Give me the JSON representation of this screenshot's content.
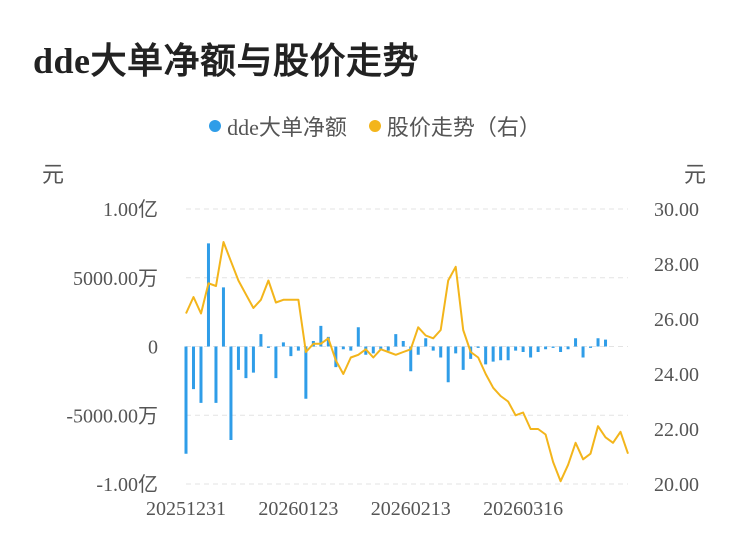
{
  "page": {
    "title": "dde大单净额与股价走势"
  },
  "legend": {
    "series1": {
      "label": "dde大单净额",
      "color": "#2f9de8"
    },
    "series2": {
      "label": "股价走势（右）",
      "color": "#f3b51b"
    }
  },
  "units": {
    "left": "元",
    "right": "元"
  },
  "chart_data": {
    "type": "bar+line",
    "title": "dde大单净额与股价走势",
    "x_tick_labels": [
      "20251231",
      "20260123",
      "20260213",
      "20260316"
    ],
    "x_tick_indices": [
      0,
      15,
      30,
      45
    ],
    "left_axis": {
      "ylim": [
        -10000,
        10000
      ],
      "unit": "万",
      "ticks": [
        "1.00亿",
        "5000.00万",
        "0",
        "-5000.00万",
        "-1.00亿"
      ],
      "tick_values": [
        10000,
        5000,
        0,
        -5000,
        -10000
      ]
    },
    "right_axis": {
      "ylim": [
        20,
        30
      ],
      "ticks": [
        "30.00",
        "28.00",
        "26.00",
        "24.00",
        "22.00",
        "20.00"
      ],
      "tick_values": [
        30,
        28,
        26,
        24,
        22,
        20
      ]
    },
    "grid": true,
    "legend_position": "top-center",
    "series": [
      {
        "name": "dde大单净额",
        "kind": "bar",
        "axis": "left",
        "color": "#2f9de8",
        "values": [
          -7800,
          -3100,
          -4100,
          7500,
          -4100,
          4300,
          -6800,
          -1700,
          -2300,
          -1900,
          900,
          -100,
          -2300,
          300,
          -700,
          -300,
          -3800,
          400,
          1500,
          700,
          -1500,
          -200,
          -300,
          1400,
          -600,
          -500,
          -200,
          -300,
          900,
          400,
          -1800,
          -600,
          600,
          -300,
          -800,
          -2600,
          -500,
          -1700,
          -900,
          -100,
          -1300,
          -1100,
          -1000,
          -1000,
          -300,
          -400,
          -800,
          -400,
          -200,
          -100,
          -400,
          -200,
          600,
          -800,
          -100,
          600,
          500
        ]
      },
      {
        "name": "股价走势（右）",
        "kind": "line",
        "axis": "right",
        "color": "#f3b51b",
        "values": [
          26.2,
          26.8,
          26.2,
          27.3,
          27.2,
          28.8,
          28.1,
          27.4,
          26.9,
          26.4,
          26.7,
          27.4,
          26.6,
          26.7,
          26.7,
          26.7,
          24.8,
          25.1,
          25.1,
          25.3,
          24.5,
          24.0,
          24.6,
          24.7,
          24.9,
          24.6,
          24.9,
          24.8,
          24.7,
          24.8,
          24.9,
          25.7,
          25.4,
          25.3,
          25.6,
          27.4,
          27.9,
          25.6,
          24.8,
          24.6,
          24.0,
          23.5,
          23.2,
          23.0,
          22.5,
          22.6,
          22.0,
          22.0,
          21.8,
          20.8,
          20.1,
          20.7,
          21.5,
          20.9,
          21.1,
          22.1,
          21.7,
          21.5,
          21.9,
          21.1
        ]
      }
    ]
  }
}
